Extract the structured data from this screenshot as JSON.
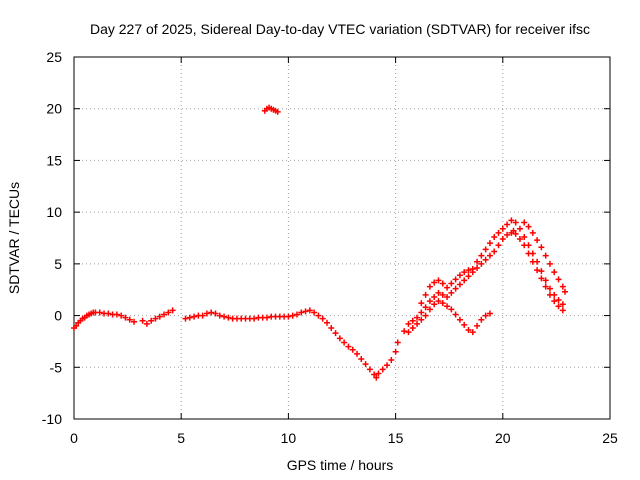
{
  "chart_data": {
    "type": "scatter",
    "title": "Day 227 of 2025, Sidereal Day-to-day VTEC variation (SDTVAR) for receiver ifsc",
    "xlabel": "GPS time / hours",
    "ylabel": "SDTVAR / TECUs",
    "xlim": [
      0,
      25
    ],
    "ylim": [
      -10,
      25
    ],
    "xticks": [
      0,
      5,
      10,
      15,
      20,
      25
    ],
    "yticks": [
      -10,
      -5,
      0,
      5,
      10,
      15,
      20,
      25
    ],
    "grid": true,
    "marker": "+",
    "color": "#ff0000",
    "series": [
      {
        "name": "main-track",
        "points": [
          [
            0.0,
            -1.2
          ],
          [
            0.1,
            -1.0
          ],
          [
            0.2,
            -0.7
          ],
          [
            0.3,
            -0.5
          ],
          [
            0.4,
            -0.3
          ],
          [
            0.5,
            -0.2
          ],
          [
            0.6,
            0.0
          ],
          [
            0.7,
            0.1
          ],
          [
            0.8,
            0.2
          ],
          [
            0.9,
            0.3
          ],
          [
            1.0,
            0.3
          ],
          [
            1.2,
            0.3
          ],
          [
            1.4,
            0.2
          ],
          [
            1.6,
            0.2
          ],
          [
            1.8,
            0.1
          ],
          [
            2.0,
            0.1
          ],
          [
            2.2,
            0.0
          ],
          [
            2.4,
            -0.2
          ],
          [
            2.6,
            -0.4
          ],
          [
            2.8,
            -0.6
          ],
          [
            3.2,
            -0.5
          ],
          [
            3.4,
            -0.8
          ],
          [
            3.6,
            -0.5
          ],
          [
            3.8,
            -0.3
          ],
          [
            4.0,
            -0.1
          ],
          [
            4.2,
            0.1
          ],
          [
            4.4,
            0.3
          ],
          [
            4.6,
            0.5
          ],
          [
            5.2,
            -0.3
          ],
          [
            5.4,
            -0.2
          ],
          [
            5.6,
            -0.1
          ],
          [
            5.8,
            0.0
          ],
          [
            6.0,
            0.0
          ],
          [
            6.2,
            0.2
          ],
          [
            6.4,
            0.3
          ],
          [
            6.6,
            0.2
          ],
          [
            6.8,
            0.0
          ],
          [
            7.0,
            -0.1
          ],
          [
            7.2,
            -0.2
          ],
          [
            7.4,
            -0.3
          ],
          [
            7.6,
            -0.3
          ],
          [
            7.8,
            -0.3
          ],
          [
            8.0,
            -0.3
          ],
          [
            8.2,
            -0.3
          ],
          [
            8.4,
            -0.3
          ],
          [
            8.6,
            -0.2
          ],
          [
            8.8,
            -0.2
          ],
          [
            9.0,
            -0.2
          ],
          [
            9.2,
            -0.1
          ],
          [
            9.4,
            -0.1
          ],
          [
            9.6,
            -0.1
          ],
          [
            9.8,
            -0.1
          ],
          [
            10.0,
            -0.1
          ],
          [
            10.2,
            0.0
          ],
          [
            10.4,
            0.1
          ],
          [
            10.6,
            0.3
          ],
          [
            10.8,
            0.4
          ],
          [
            11.0,
            0.5
          ],
          [
            11.2,
            0.3
          ],
          [
            11.4,
            0.0
          ],
          [
            11.6,
            -0.3
          ],
          [
            11.8,
            -0.7
          ],
          [
            12.0,
            -1.2
          ],
          [
            12.2,
            -1.7
          ],
          [
            12.4,
            -2.2
          ],
          [
            12.6,
            -2.6
          ],
          [
            12.8,
            -3.0
          ],
          [
            13.0,
            -3.3
          ],
          [
            13.2,
            -3.7
          ],
          [
            13.4,
            -4.2
          ],
          [
            13.6,
            -4.7
          ],
          [
            13.8,
            -5.2
          ],
          [
            14.0,
            -5.7
          ],
          [
            14.1,
            -6.0
          ],
          [
            14.2,
            -5.6
          ],
          [
            14.4,
            -5.2
          ],
          [
            14.6,
            -4.8
          ],
          [
            14.8,
            -4.3
          ],
          [
            15.0,
            -3.5
          ],
          [
            15.1,
            -2.6
          ],
          [
            15.4,
            -1.5
          ],
          [
            15.6,
            -0.8
          ],
          [
            15.8,
            -0.5
          ],
          [
            16.0,
            -0.2
          ],
          [
            16.2,
            0.3
          ],
          [
            16.4,
            0.8
          ],
          [
            16.6,
            1.4
          ],
          [
            16.8,
            1.8
          ],
          [
            17.0,
            2.2
          ],
          [
            17.2,
            2.0
          ],
          [
            17.4,
            1.8
          ],
          [
            17.6,
            2.2
          ],
          [
            17.8,
            2.6
          ],
          [
            18.0,
            3.0
          ],
          [
            18.2,
            3.4
          ],
          [
            18.4,
            3.8
          ],
          [
            18.6,
            4.2
          ],
          [
            18.8,
            4.6
          ],
          [
            19.0,
            5.0
          ],
          [
            19.2,
            5.4
          ],
          [
            19.4,
            5.8
          ],
          [
            19.6,
            6.2
          ],
          [
            19.8,
            6.8
          ],
          [
            20.0,
            7.4
          ],
          [
            20.2,
            7.8
          ],
          [
            20.4,
            8.0
          ],
          [
            20.5,
            8.2
          ],
          [
            20.6,
            7.9
          ],
          [
            20.8,
            7.4
          ],
          [
            21.0,
            6.8
          ],
          [
            21.2,
            6.0
          ],
          [
            21.4,
            5.2
          ],
          [
            21.6,
            4.4
          ],
          [
            21.8,
            3.6
          ],
          [
            22.0,
            2.8
          ],
          [
            22.2,
            2.0
          ],
          [
            22.4,
            1.4
          ],
          [
            22.6,
            0.9
          ],
          [
            22.8,
            0.5
          ]
        ]
      },
      {
        "name": "upper-track",
        "points": [
          [
            16.2,
            1.2
          ],
          [
            16.4,
            2.0
          ],
          [
            16.6,
            2.8
          ],
          [
            16.8,
            3.2
          ],
          [
            17.0,
            3.4
          ],
          [
            17.2,
            3.1
          ],
          [
            17.4,
            2.7
          ],
          [
            17.6,
            3.1
          ],
          [
            17.8,
            3.5
          ],
          [
            18.0,
            3.9
          ],
          [
            18.2,
            4.2
          ],
          [
            18.4,
            4.4
          ],
          [
            18.6,
            4.5
          ],
          [
            18.8,
            5.2
          ],
          [
            19.0,
            5.8
          ],
          [
            19.2,
            6.4
          ],
          [
            19.4,
            7.0
          ],
          [
            19.6,
            7.6
          ],
          [
            19.8,
            8.0
          ],
          [
            20.0,
            8.4
          ],
          [
            20.2,
            8.8
          ],
          [
            20.4,
            9.2
          ],
          [
            20.6,
            9.0
          ],
          [
            20.8,
            8.4
          ],
          [
            21.0,
            7.6
          ],
          [
            21.2,
            6.8
          ],
          [
            21.4,
            6.0
          ],
          [
            21.6,
            5.2
          ],
          [
            21.8,
            4.3
          ],
          [
            22.0,
            3.4
          ],
          [
            22.2,
            2.6
          ],
          [
            22.4,
            2.0
          ],
          [
            22.6,
            1.5
          ],
          [
            22.8,
            1.1
          ]
        ]
      },
      {
        "name": "lower-track",
        "points": [
          [
            15.6,
            -1.6
          ],
          [
            15.8,
            -1.2
          ],
          [
            16.0,
            -0.8
          ],
          [
            16.2,
            -0.4
          ],
          [
            16.4,
            0.0
          ],
          [
            16.6,
            0.6
          ],
          [
            16.8,
            1.1
          ],
          [
            17.0,
            1.4
          ],
          [
            17.2,
            1.2
          ],
          [
            17.4,
            0.9
          ],
          [
            17.6,
            0.6
          ],
          [
            17.8,
            0.1
          ],
          [
            18.0,
            -0.4
          ],
          [
            18.2,
            -0.9
          ],
          [
            18.4,
            -1.4
          ],
          [
            18.6,
            -1.6
          ],
          [
            18.8,
            -1.0
          ],
          [
            19.0,
            -0.4
          ],
          [
            19.2,
            0.0
          ],
          [
            19.4,
            0.2
          ]
        ]
      },
      {
        "name": "decay-tail",
        "points": [
          [
            21.0,
            9.0
          ],
          [
            21.2,
            8.6
          ],
          [
            21.4,
            8.0
          ],
          [
            21.6,
            7.3
          ],
          [
            21.8,
            6.6
          ],
          [
            22.0,
            5.8
          ],
          [
            22.2,
            5.0
          ],
          [
            22.4,
            4.2
          ],
          [
            22.6,
            3.5
          ],
          [
            22.8,
            2.8
          ],
          [
            22.9,
            2.3
          ]
        ]
      },
      {
        "name": "isolated-cluster",
        "points": [
          [
            8.9,
            19.8
          ],
          [
            9.0,
            20.0
          ],
          [
            9.1,
            20.1
          ],
          [
            9.2,
            20.0
          ],
          [
            9.3,
            19.9
          ],
          [
            9.4,
            19.8
          ],
          [
            9.5,
            19.7
          ]
        ]
      }
    ]
  }
}
